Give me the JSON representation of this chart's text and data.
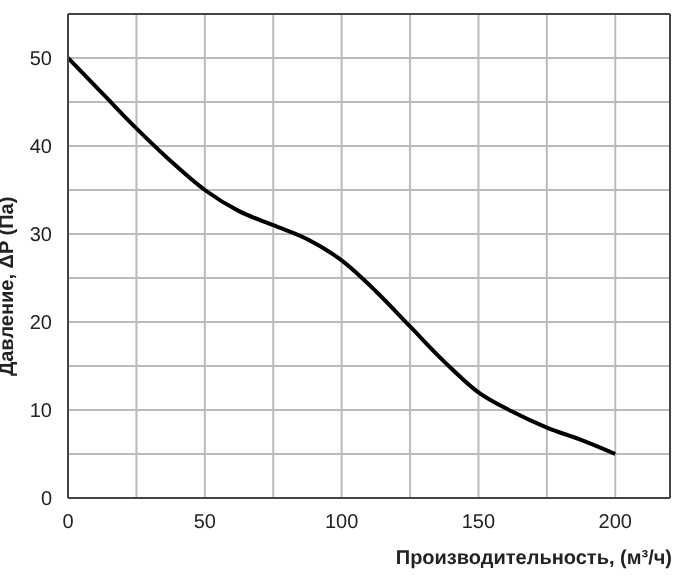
{
  "chart_data": {
    "type": "line",
    "xlabel": "Производительность, (м³/ч)",
    "ylabel": "Давление, ΔP (Па)",
    "x": [
      0,
      12.5,
      25,
      37.5,
      50,
      62.5,
      75,
      87.5,
      100,
      112.5,
      125,
      137.5,
      150,
      162.5,
      175,
      187.5,
      200
    ],
    "series": [
      {
        "color": "#000000",
        "values": [
          50,
          46,
          42,
          38.3,
          35,
          32.6,
          31,
          29.4,
          27,
          23.5,
          19.5,
          15.5,
          12,
          9.8,
          8,
          6.6,
          5
        ]
      }
    ],
    "xlim": [
      0,
      220
    ],
    "xticks": [
      0,
      {
        "value": 25,
        "label": null
      },
      50,
      {
        "value": 75,
        "label": null
      },
      100,
      {
        "value": 125,
        "label": null
      },
      150,
      {
        "value": 175,
        "label": null
      },
      200
    ],
    "ylim": [
      0,
      55
    ],
    "yticks": [
      0,
      {
        "value": 5,
        "label": null
      },
      10,
      {
        "value": 15,
        "label": null
      },
      20,
      {
        "value": 25,
        "label": null
      },
      30,
      {
        "value": 35,
        "label": null
      },
      40,
      {
        "value": 45,
        "label": null
      },
      50
    ],
    "grid": true,
    "marker": "none",
    "line_style": "solid"
  }
}
